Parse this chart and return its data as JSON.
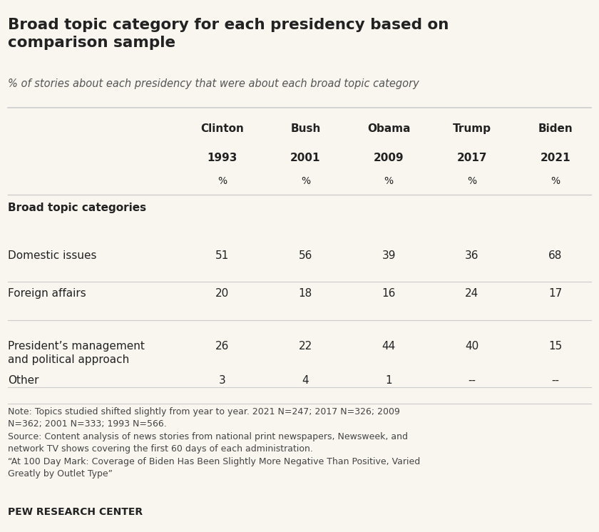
{
  "title": "Broad topic category for each presidency based on\ncomparison sample",
  "subtitle": "% of stories about each presidency that were about each broad topic category",
  "col_names": [
    "Clinton",
    "Bush",
    "Obama",
    "Trump",
    "Biden"
  ],
  "col_years": [
    "1993",
    "2001",
    "2009",
    "2017",
    "2021"
  ],
  "section_header": "Broad topic categories",
  "rows": [
    {
      "label": "Domestic issues",
      "values": [
        "51",
        "56",
        "39",
        "36",
        "68"
      ]
    },
    {
      "label": "Foreign affairs",
      "values": [
        "20",
        "18",
        "16",
        "24",
        "17"
      ]
    },
    {
      "label": "President’s management\nand political approach",
      "values": [
        "26",
        "22",
        "44",
        "40",
        "15"
      ]
    },
    {
      "label": "Other",
      "values": [
        "3",
        "4",
        "1",
        "--",
        "--"
      ]
    }
  ],
  "note_text": "Note: Topics studied shifted slightly from year to year. 2021 N=247; 2017 N=326; 2009\nN=362; 2001 N=333; 1993 N=566.\nSource: Content analysis of news stories from national print newspapers, Newsweek, and\nnetwork TV shows covering the first 60 days of each administration.\n“At 100 Day Mark: Coverage of Biden Has Been Slightly More Negative Than Positive, Varied\nGreatly by Outlet Type”",
  "footer": "PEW RESEARCH CENTER",
  "bg_color": "#f9f6f0",
  "text_color": "#222222",
  "divider_color": "#cccccc"
}
